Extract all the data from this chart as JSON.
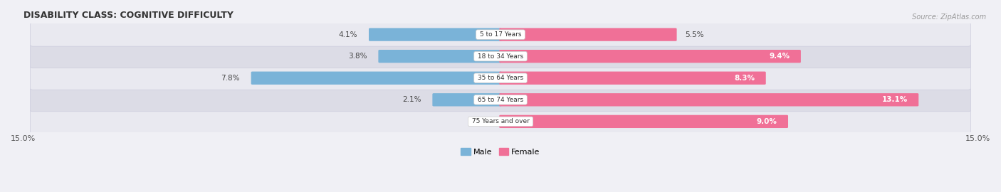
{
  "title": "DISABILITY CLASS: COGNITIVE DIFFICULTY",
  "source": "Source: ZipAtlas.com",
  "categories": [
    "5 to 17 Years",
    "18 to 34 Years",
    "35 to 64 Years",
    "65 to 74 Years",
    "75 Years and over"
  ],
  "male_values": [
    4.1,
    3.8,
    7.8,
    2.1,
    0.0
  ],
  "female_values": [
    5.5,
    9.4,
    8.3,
    13.1,
    9.0
  ],
  "x_max": 15.0,
  "male_color": "#7ab3d8",
  "female_color": "#f07097",
  "row_bg_color": "#e8e8ee",
  "title_color": "#333333",
  "bar_height": 0.52,
  "figsize": [
    14.06,
    2.7
  ],
  "dpi": 100
}
